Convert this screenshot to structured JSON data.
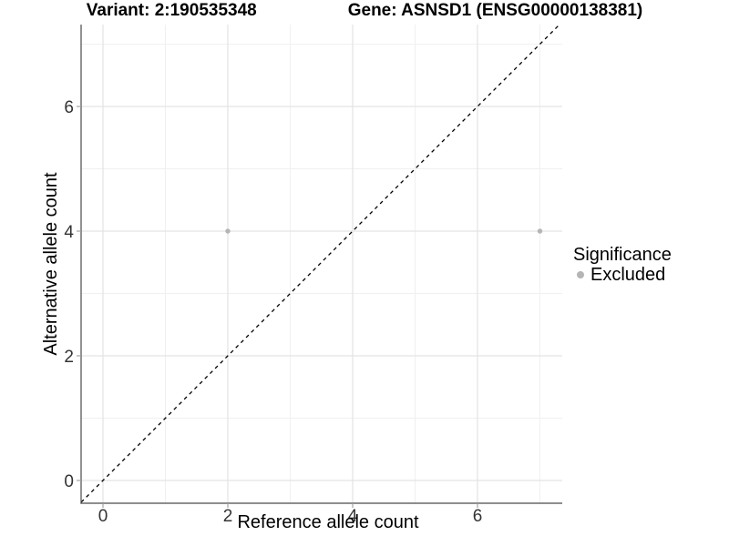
{
  "titles": {
    "variant": "Variant: 2:190535348",
    "gene": "Gene: ASNSD1 (ENSG00000138381)"
  },
  "axes": {
    "x": {
      "label": "Reference allele count"
    },
    "y": {
      "label": "Alternative allele count"
    }
  },
  "legend": {
    "title": "Significance",
    "items": [
      {
        "label": "Excluded",
        "color": "#b5b5b5"
      }
    ]
  },
  "chart_data": {
    "type": "scatter",
    "title": "Variant: 2:190535348    Gene: ASNSD1 (ENSG00000138381)",
    "xlabel": "Reference allele count",
    "ylabel": "Alternative allele count",
    "xlim": [
      -0.35,
      7.35
    ],
    "ylim": [
      -0.35,
      7.35
    ],
    "x_ticks": [
      0,
      2,
      4,
      6
    ],
    "y_ticks": [
      0,
      2,
      4,
      6
    ],
    "x_minor_gridlines": [
      1,
      3,
      5,
      7
    ],
    "y_minor_gridlines": [
      1,
      3,
      5,
      7
    ],
    "grid": "major+minor",
    "legend_position": "right",
    "series": [
      {
        "name": "Excluded",
        "color": "#b5b5b5",
        "marker": "circle",
        "points": [
          [
            2,
            4
          ],
          [
            7,
            4
          ]
        ]
      }
    ],
    "reference_line": {
      "slope": 1,
      "intercept": 0,
      "style": "dashed",
      "color": "#000000"
    },
    "colors": {
      "axis_line": "#4a4a4a",
      "tick_mark": "#a3a3a3",
      "tick_label": "#333333",
      "grid_major": "#e3e3e3",
      "grid_minor": "#f0f0f0",
      "panel_background": "#ffffff"
    }
  }
}
